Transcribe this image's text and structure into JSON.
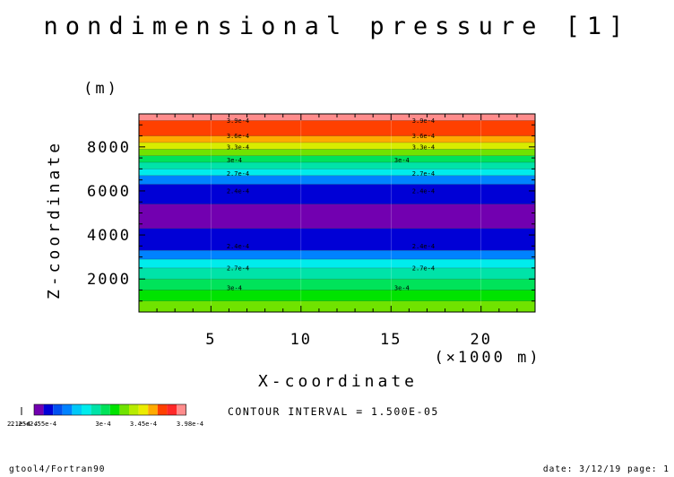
{
  "chart_data": {
    "type": "heatmap",
    "title": "nondimensional pressure [1]",
    "xlabel": "X-coordinate",
    "x_units": "(×1000 m)",
    "ylabel": "Z-coordinate",
    "y_units": "(m)",
    "xlim": [
      1,
      23
    ],
    "ylim": [
      500,
      9500
    ],
    "x_ticks": [
      5,
      10,
      15,
      20
    ],
    "y_ticks": [
      2000,
      4000,
      6000,
      8000
    ],
    "contour_interval_text": "CONTOUR INTERVAL = 1.500E-05",
    "bands": [
      {
        "z0": 500,
        "z1": 1000,
        "color": "#70e300"
      },
      {
        "z0": 1000,
        "z1": 1500,
        "color": "#00e300"
      },
      {
        "z0": 1500,
        "z1": 2000,
        "color": "#00e35a"
      },
      {
        "z0": 2000,
        "z1": 2500,
        "color": "#00e3a8"
      },
      {
        "z0": 2500,
        "z1": 2900,
        "color": "#00ecec"
      },
      {
        "z0": 2900,
        "z1": 3300,
        "color": "#0082ff"
      },
      {
        "z0": 3300,
        "z1": 4300,
        "color": "#0000d6"
      },
      {
        "z0": 4300,
        "z1": 5400,
        "color": "#7200b0"
      },
      {
        "z0": 5400,
        "z1": 6300,
        "color": "#0000d6"
      },
      {
        "z0": 6300,
        "z1": 6700,
        "color": "#0082ff"
      },
      {
        "z0": 6700,
        "z1": 7000,
        "color": "#00ecec"
      },
      {
        "z0": 7000,
        "z1": 7300,
        "color": "#00e3a8"
      },
      {
        "z0": 7300,
        "z1": 7600,
        "color": "#00e35a"
      },
      {
        "z0": 7600,
        "z1": 7900,
        "color": "#70e300"
      },
      {
        "z0": 7900,
        "z1": 8200,
        "color": "#d8ec00"
      },
      {
        "z0": 8200,
        "z1": 8500,
        "color": "#ffaa00"
      },
      {
        "z0": 8500,
        "z1": 9200,
        "color": "#ff4000"
      },
      {
        "z0": 9200,
        "z1": 9500,
        "color": "#ff8c8c"
      }
    ],
    "contour_labels": [
      {
        "z": 9200,
        "text": "3.9e-4",
        "x": [
          6.5,
          16.8
        ]
      },
      {
        "z": 8500,
        "text": "3.6e-4",
        "x": [
          6.5,
          16.8
        ]
      },
      {
        "z": 8000,
        "text": "3.3e-4",
        "x": [
          6.5,
          16.8
        ]
      },
      {
        "z": 7400,
        "text": "3e-4",
        "x": [
          6.3,
          15.6
        ]
      },
      {
        "z": 6800,
        "text": "2.7e-4",
        "x": [
          6.5,
          16.8
        ]
      },
      {
        "z": 6000,
        "text": "2.4e-4",
        "x": [
          6.5,
          16.8
        ]
      },
      {
        "z": 3500,
        "text": "2.4e-4",
        "x": [
          6.5,
          16.8
        ]
      },
      {
        "z": 2500,
        "text": "2.7e-4",
        "x": [
          6.5,
          16.8
        ]
      },
      {
        "z": 1600,
        "text": "3e-4",
        "x": [
          6.3,
          15.6
        ]
      }
    ],
    "colorbar": {
      "colors": [
        "#7200b0",
        "#0000d6",
        "#0050f0",
        "#0082ff",
        "#00c8f8",
        "#00ecec",
        "#00e3a8",
        "#00e35a",
        "#00e300",
        "#70e300",
        "#b8ec00",
        "#ecec00",
        "#ffaa00",
        "#ff4000",
        "#ff2828",
        "#ff8c8c"
      ],
      "labels": [
        "2.1e-4",
        "2.25e-4",
        "2.55e-4",
        "3e-4",
        "3.45e-4",
        "3.98e-4"
      ]
    }
  },
  "footer": {
    "left": "gtool4/Fortran90",
    "right": "date: 3/12/19 page: 1"
  }
}
